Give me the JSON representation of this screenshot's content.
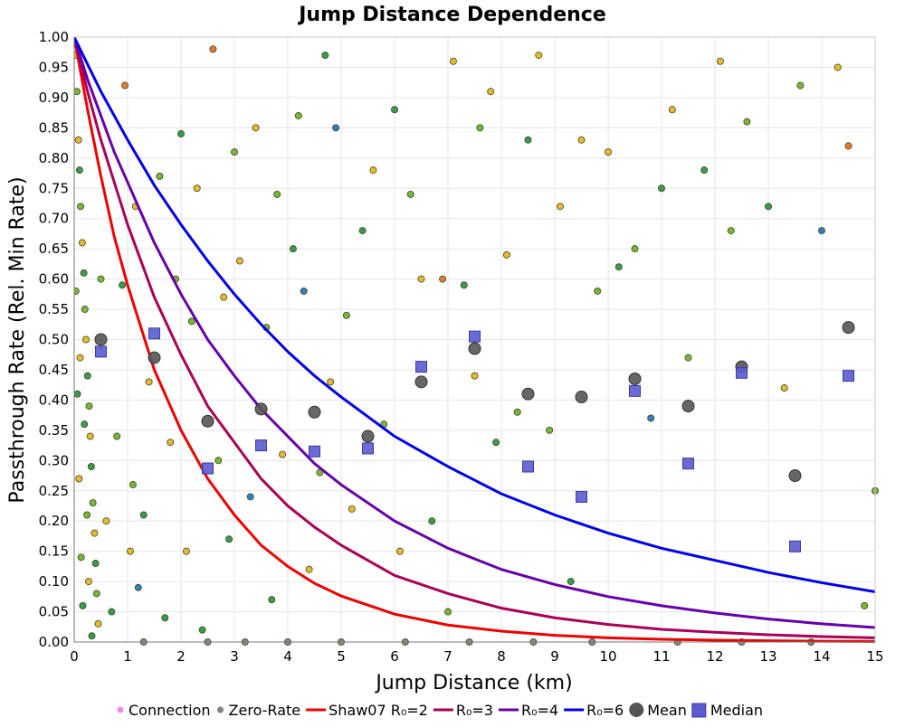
{
  "chart_data": {
    "type": "scatter",
    "title": "Jump Distance Dependence",
    "xlabel": "Jump Distance (km)",
    "ylabel": "Passthrough Rate (Rel. Min Rate)",
    "xlim": [
      0,
      15
    ],
    "ylim": [
      0,
      1
    ],
    "x_ticks": [
      "0",
      "1",
      "2",
      "3",
      "4",
      "5",
      "6",
      "7",
      "8",
      "9",
      "10",
      "11",
      "12",
      "13",
      "14",
      "15"
    ],
    "y_ticks": [
      "0.00",
      "0.05",
      "0.10",
      "0.15",
      "0.20",
      "0.25",
      "0.30",
      "0.35",
      "0.40",
      "0.45",
      "0.50",
      "0.55",
      "0.60",
      "0.65",
      "0.70",
      "0.75",
      "0.80",
      "0.85",
      "0.90",
      "0.95",
      "1.00"
    ],
    "grid": true,
    "legend_position": "bottom",
    "legend": [
      {
        "label": "Connection",
        "marker": "circle",
        "color": "#ee88ee"
      },
      {
        "label": "Zero-Rate",
        "marker": "circle",
        "color": "#808080"
      },
      {
        "label": "Shaw07 R₀=2",
        "marker": "line",
        "color": "#ee0000"
      },
      {
        "label": "R₀=3",
        "marker": "line",
        "color": "#aa0055"
      },
      {
        "label": "R₀=4",
        "marker": "line",
        "color": "#6600aa"
      },
      {
        "label": "R₀=6",
        "marker": "line",
        "color": "#0000ee"
      },
      {
        "label": "Mean",
        "marker": "bigcircle",
        "color": "#555555"
      },
      {
        "label": "Median",
        "marker": "square",
        "color": "#5b5bd0"
      }
    ],
    "curves": [
      {
        "name": "Shaw07 R₀=2",
        "color": "#ee0000",
        "x": [
          0,
          0.25,
          0.5,
          0.75,
          1,
          1.5,
          2,
          2.5,
          3,
          3.5,
          4,
          4.5,
          5,
          6,
          7,
          8,
          9,
          10,
          11,
          12,
          13,
          14,
          15
        ],
        "y": [
          1.0,
          0.88,
          0.77,
          0.67,
          0.59,
          0.45,
          0.35,
          0.27,
          0.21,
          0.16,
          0.125,
          0.097,
          0.076,
          0.046,
          0.028,
          0.018,
          0.011,
          0.007,
          0.0045,
          0.003,
          0.002,
          0.0013,
          0.0009
        ]
      },
      {
        "name": "R₀=3",
        "color": "#aa0055",
        "x": [
          0,
          0.25,
          0.5,
          0.75,
          1,
          1.5,
          2,
          2.5,
          3,
          3.5,
          4,
          4.5,
          5,
          6,
          7,
          8,
          9,
          10,
          11,
          12,
          13,
          14,
          15
        ],
        "y": [
          1.0,
          0.91,
          0.83,
          0.76,
          0.69,
          0.57,
          0.475,
          0.39,
          0.33,
          0.27,
          0.225,
          0.19,
          0.16,
          0.11,
          0.08,
          0.056,
          0.04,
          0.029,
          0.021,
          0.016,
          0.012,
          0.009,
          0.007
        ]
      },
      {
        "name": "R₀=4",
        "color": "#6600aa",
        "x": [
          0,
          0.25,
          0.5,
          0.75,
          1,
          1.5,
          2,
          2.5,
          3,
          3.5,
          4,
          4.5,
          5,
          6,
          7,
          8,
          9,
          10,
          11,
          12,
          13,
          14,
          15
        ],
        "y": [
          1.0,
          0.93,
          0.87,
          0.81,
          0.76,
          0.66,
          0.575,
          0.5,
          0.44,
          0.385,
          0.34,
          0.295,
          0.26,
          0.2,
          0.155,
          0.12,
          0.095,
          0.075,
          0.06,
          0.048,
          0.038,
          0.03,
          0.024
        ]
      },
      {
        "name": "R₀=6",
        "color": "#0000ee",
        "x": [
          0,
          0.25,
          0.5,
          0.75,
          1,
          1.5,
          2,
          2.5,
          3,
          3.5,
          4,
          4.5,
          5,
          6,
          7,
          8,
          9,
          10,
          11,
          12,
          13,
          14,
          15
        ],
        "y": [
          1.0,
          0.955,
          0.91,
          0.87,
          0.83,
          0.755,
          0.69,
          0.63,
          0.575,
          0.525,
          0.48,
          0.44,
          0.405,
          0.34,
          0.29,
          0.245,
          0.21,
          0.18,
          0.155,
          0.135,
          0.115,
          0.098,
          0.083
        ]
      }
    ],
    "mean": {
      "x": [
        0.5,
        1.5,
        2.5,
        3.5,
        4.5,
        5.5,
        6.5,
        7.5,
        8.5,
        9.5,
        10.5,
        11.5,
        12.5,
        13.5,
        14.5
      ],
      "y": [
        0.5,
        0.47,
        0.365,
        0.385,
        0.38,
        0.34,
        0.43,
        0.485,
        0.41,
        0.405,
        0.435,
        0.39,
        0.455,
        0.275,
        0.52
      ]
    },
    "median": {
      "x": [
        0.5,
        1.5,
        2.5,
        3.5,
        4.5,
        5.5,
        6.5,
        7.5,
        8.5,
        9.5,
        10.5,
        11.5,
        12.5,
        13.5,
        14.5
      ],
      "y": [
        0.48,
        0.51,
        0.287,
        0.325,
        0.315,
        0.32,
        0.455,
        0.505,
        0.29,
        0.24,
        0.415,
        0.295,
        0.445,
        0.158,
        0.44
      ]
    },
    "scatter_points": [
      {
        "x": 0.02,
        "y": 0.97,
        "c": "#e8b830"
      },
      {
        "x": 0.05,
        "y": 0.91,
        "c": "#7ab53a"
      },
      {
        "x": 0.08,
        "y": 0.83,
        "c": "#e8b830"
      },
      {
        "x": 0.1,
        "y": 0.78,
        "c": "#3a9a50"
      },
      {
        "x": 0.12,
        "y": 0.72,
        "c": "#7ab53a"
      },
      {
        "x": 0.15,
        "y": 0.66,
        "c": "#e8b830"
      },
      {
        "x": 0.18,
        "y": 0.61,
        "c": "#3a9a50"
      },
      {
        "x": 0.2,
        "y": 0.55,
        "c": "#7ab53a"
      },
      {
        "x": 0.22,
        "y": 0.5,
        "c": "#e8b830"
      },
      {
        "x": 0.25,
        "y": 0.44,
        "c": "#3a9a50"
      },
      {
        "x": 0.28,
        "y": 0.39,
        "c": "#7ab53a"
      },
      {
        "x": 0.3,
        "y": 0.34,
        "c": "#e8b830"
      },
      {
        "x": 0.32,
        "y": 0.29,
        "c": "#3a9a50"
      },
      {
        "x": 0.35,
        "y": 0.23,
        "c": "#7ab53a"
      },
      {
        "x": 0.38,
        "y": 0.18,
        "c": "#e8b830"
      },
      {
        "x": 0.4,
        "y": 0.13,
        "c": "#3a9a50"
      },
      {
        "x": 0.42,
        "y": 0.08,
        "c": "#7ab53a"
      },
      {
        "x": 0.45,
        "y": 0.03,
        "c": "#e8b830"
      },
      {
        "x": 0.06,
        "y": 0.41,
        "c": "#3a9a50"
      },
      {
        "x": 0.09,
        "y": 0.27,
        "c": "#e8b830"
      },
      {
        "x": 0.13,
        "y": 0.14,
        "c": "#7ab53a"
      },
      {
        "x": 0.16,
        "y": 0.06,
        "c": "#3a9a50"
      },
      {
        "x": 0.03,
        "y": 0.58,
        "c": "#7ab53a"
      },
      {
        "x": 0.11,
        "y": 0.47,
        "c": "#e8b830"
      },
      {
        "x": 0.19,
        "y": 0.36,
        "c": "#3a9a50"
      },
      {
        "x": 0.24,
        "y": 0.21,
        "c": "#7ab53a"
      },
      {
        "x": 0.27,
        "y": 0.1,
        "c": "#e8b830"
      },
      {
        "x": 0.33,
        "y": 0.01,
        "c": "#3a9a50"
      },
      {
        "x": 0.5,
        "y": 0.6,
        "c": "#7ab53a"
      },
      {
        "x": 0.6,
        "y": 0.2,
        "c": "#e8b830"
      },
      {
        "x": 0.7,
        "y": 0.05,
        "c": "#3a9a50"
      },
      {
        "x": 0.8,
        "y": 0.34,
        "c": "#7ab53a"
      },
      {
        "x": 0.9,
        "y": 0.59,
        "c": "#3a9a50"
      },
      {
        "x": 0.95,
        "y": 0.92,
        "c": "#e87830"
      },
      {
        "x": 1.05,
        "y": 0.15,
        "c": "#e8b830"
      },
      {
        "x": 1.1,
        "y": 0.26,
        "c": "#7ab53a"
      },
      {
        "x": 1.15,
        "y": 0.72,
        "c": "#e8b830"
      },
      {
        "x": 1.2,
        "y": 0.09,
        "c": "#2f7fc0"
      },
      {
        "x": 1.3,
        "y": 0.21,
        "c": "#3a9a50"
      },
      {
        "x": 1.4,
        "y": 0.43,
        "c": "#e8b830"
      },
      {
        "x": 1.6,
        "y": 0.77,
        "c": "#7ab53a"
      },
      {
        "x": 1.7,
        "y": 0.04,
        "c": "#3a9a50"
      },
      {
        "x": 1.8,
        "y": 0.33,
        "c": "#e8b830"
      },
      {
        "x": 1.9,
        "y": 0.6,
        "c": "#7ab53a"
      },
      {
        "x": 2.0,
        "y": 0.84,
        "c": "#3a9a50"
      },
      {
        "x": 2.1,
        "y": 0.15,
        "c": "#e8b830"
      },
      {
        "x": 2.2,
        "y": 0.53,
        "c": "#7ab53a"
      },
      {
        "x": 2.3,
        "y": 0.75,
        "c": "#e8b830"
      },
      {
        "x": 2.4,
        "y": 0.02,
        "c": "#3a9a50"
      },
      {
        "x": 2.6,
        "y": 0.98,
        "c": "#e87830"
      },
      {
        "x": 2.7,
        "y": 0.3,
        "c": "#7ab53a"
      },
      {
        "x": 2.8,
        "y": 0.57,
        "c": "#e8b830"
      },
      {
        "x": 2.9,
        "y": 0.17,
        "c": "#3a9a50"
      },
      {
        "x": 3.0,
        "y": 0.81,
        "c": "#7ab53a"
      },
      {
        "x": 3.1,
        "y": 0.63,
        "c": "#e8b830"
      },
      {
        "x": 3.3,
        "y": 0.24,
        "c": "#2f7fc0"
      },
      {
        "x": 3.4,
        "y": 0.85,
        "c": "#e8b830"
      },
      {
        "x": 3.6,
        "y": 0.52,
        "c": "#7ab53a"
      },
      {
        "x": 3.7,
        "y": 0.07,
        "c": "#3a9a50"
      },
      {
        "x": 3.8,
        "y": 0.74,
        "c": "#7ab53a"
      },
      {
        "x": 3.9,
        "y": 0.31,
        "c": "#e8b830"
      },
      {
        "x": 4.1,
        "y": 0.65,
        "c": "#3a9a50"
      },
      {
        "x": 4.2,
        "y": 0.87,
        "c": "#7ab53a"
      },
      {
        "x": 4.3,
        "y": 0.58,
        "c": "#2f7fc0"
      },
      {
        "x": 4.4,
        "y": 0.12,
        "c": "#e8b830"
      },
      {
        "x": 4.6,
        "y": 0.28,
        "c": "#7ab53a"
      },
      {
        "x": 4.7,
        "y": 0.97,
        "c": "#3a9a50"
      },
      {
        "x": 4.8,
        "y": 0.43,
        "c": "#e8b830"
      },
      {
        "x": 4.9,
        "y": 0.85,
        "c": "#2f7fc0"
      },
      {
        "x": 5.1,
        "y": 0.54,
        "c": "#7ab53a"
      },
      {
        "x": 5.2,
        "y": 0.22,
        "c": "#e8b830"
      },
      {
        "x": 5.4,
        "y": 0.68,
        "c": "#3a9a50"
      },
      {
        "x": 5.6,
        "y": 0.78,
        "c": "#e8b830"
      },
      {
        "x": 5.8,
        "y": 0.36,
        "c": "#7ab53a"
      },
      {
        "x": 6.0,
        "y": 0.88,
        "c": "#3a9a50"
      },
      {
        "x": 6.1,
        "y": 0.15,
        "c": "#e8b830"
      },
      {
        "x": 6.3,
        "y": 0.74,
        "c": "#7ab53a"
      },
      {
        "x": 6.5,
        "y": 0.6,
        "c": "#e8b830"
      },
      {
        "x": 6.7,
        "y": 0.2,
        "c": "#3a9a50"
      },
      {
        "x": 6.9,
        "y": 0.6,
        "c": "#e87830"
      },
      {
        "x": 7.0,
        "y": 0.05,
        "c": "#7ab53a"
      },
      {
        "x": 7.1,
        "y": 0.96,
        "c": "#e8b830"
      },
      {
        "x": 7.3,
        "y": 0.59,
        "c": "#3a9a50"
      },
      {
        "x": 7.5,
        "y": 0.44,
        "c": "#e8b830"
      },
      {
        "x": 7.6,
        "y": 0.85,
        "c": "#7ab53a"
      },
      {
        "x": 7.8,
        "y": 0.91,
        "c": "#e8b830"
      },
      {
        "x": 7.9,
        "y": 0.33,
        "c": "#3a9a50"
      },
      {
        "x": 8.1,
        "y": 0.64,
        "c": "#e8b830"
      },
      {
        "x": 8.3,
        "y": 0.38,
        "c": "#7ab53a"
      },
      {
        "x": 8.5,
        "y": 0.83,
        "c": "#3a9a50"
      },
      {
        "x": 8.7,
        "y": 0.97,
        "c": "#e8b830"
      },
      {
        "x": 8.9,
        "y": 0.35,
        "c": "#7ab53a"
      },
      {
        "x": 9.1,
        "y": 0.72,
        "c": "#e8b830"
      },
      {
        "x": 9.3,
        "y": 0.1,
        "c": "#3a9a50"
      },
      {
        "x": 9.5,
        "y": 0.83,
        "c": "#e8b830"
      },
      {
        "x": 9.8,
        "y": 0.58,
        "c": "#7ab53a"
      },
      {
        "x": 10.0,
        "y": 0.81,
        "c": "#e8b830"
      },
      {
        "x": 10.2,
        "y": 0.62,
        "c": "#3a9a50"
      },
      {
        "x": 10.5,
        "y": 0.65,
        "c": "#7ab53a"
      },
      {
        "x": 10.8,
        "y": 0.37,
        "c": "#2f7fc0"
      },
      {
        "x": 11.0,
        "y": 0.75,
        "c": "#3a9a50"
      },
      {
        "x": 11.2,
        "y": 0.88,
        "c": "#e8b830"
      },
      {
        "x": 11.5,
        "y": 0.47,
        "c": "#7ab53a"
      },
      {
        "x": 11.8,
        "y": 0.78,
        "c": "#3a9a50"
      },
      {
        "x": 12.1,
        "y": 0.96,
        "c": "#e8b830"
      },
      {
        "x": 12.3,
        "y": 0.68,
        "c": "#7ab53a"
      },
      {
        "x": 12.6,
        "y": 0.86,
        "c": "#7ab53a"
      },
      {
        "x": 13.0,
        "y": 0.72,
        "c": "#3a9a50"
      },
      {
        "x": 13.3,
        "y": 0.42,
        "c": "#e8b830"
      },
      {
        "x": 13.6,
        "y": 0.92,
        "c": "#7ab53a"
      },
      {
        "x": 14.0,
        "y": 0.68,
        "c": "#2f7fc0"
      },
      {
        "x": 14.3,
        "y": 0.95,
        "c": "#e8b830"
      },
      {
        "x": 14.5,
        "y": 0.82,
        "c": "#e87830"
      },
      {
        "x": 14.8,
        "y": 0.06,
        "c": "#7ab53a"
      },
      {
        "x": 15.0,
        "y": 0.25,
        "c": "#7ab53a"
      },
      {
        "x": 3.2,
        "y": 0.0,
        "c": "#888888"
      },
      {
        "x": 4.0,
        "y": 0.0,
        "c": "#888888"
      },
      {
        "x": 5.0,
        "y": 0.0,
        "c": "#888888"
      },
      {
        "x": 6.2,
        "y": 0.0,
        "c": "#888888"
      },
      {
        "x": 7.4,
        "y": 0.0,
        "c": "#888888"
      },
      {
        "x": 8.6,
        "y": 0.0,
        "c": "#888888"
      },
      {
        "x": 9.7,
        "y": 0.0,
        "c": "#888888"
      },
      {
        "x": 11.3,
        "y": 0.0,
        "c": "#888888"
      },
      {
        "x": 12.5,
        "y": 0.0,
        "c": "#888888"
      },
      {
        "x": 13.8,
        "y": 0.0,
        "c": "#888888"
      },
      {
        "x": 1.3,
        "y": 0.0,
        "c": "#888888"
      },
      {
        "x": 2.5,
        "y": 0.0,
        "c": "#888888"
      }
    ]
  }
}
